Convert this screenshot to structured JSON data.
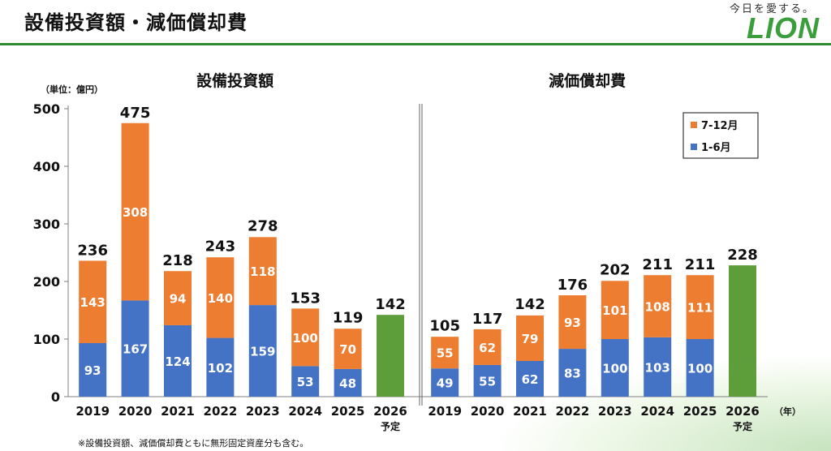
{
  "page": {
    "title": "設備投資額・減価償却費",
    "footnote": "※設備投資額、減価償却費ともに無形固定資産分も含む。"
  },
  "logo": {
    "tagline": "今日を愛する。",
    "name": "LION"
  },
  "colors": {
    "h1": "#4472c4",
    "h2": "#ed7d31",
    "planned": "#5e9e3a",
    "rule": "#2e8b34"
  },
  "chart_data": {
    "type": "bar",
    "unit_label": "（単位：億円）",
    "year_unit_label": "（年）",
    "ylim": [
      0,
      500
    ],
    "yticks": [
      0,
      100,
      200,
      300,
      400,
      500
    ],
    "legend": [
      {
        "key": "h2",
        "label": "7-12月"
      },
      {
        "key": "h1",
        "label": "1-6月"
      }
    ],
    "panels": [
      {
        "title": "設備投資額",
        "categories": [
          "2019",
          "2020",
          "2021",
          "2022",
          "2023",
          "2024",
          "2025",
          "2026"
        ],
        "category_notes": [
          "",
          "",
          "",
          "",
          "",
          "",
          "",
          "予定"
        ],
        "series": [
          {
            "name": "1-6月",
            "values": [
              93,
              167,
              124,
              102,
              159,
              53,
              48,
              null
            ]
          },
          {
            "name": "7-12月",
            "values": [
              143,
              308,
              94,
              140,
              118,
              100,
              70,
              null
            ]
          }
        ],
        "totals": [
          236,
          475,
          218,
          243,
          278,
          153,
          119,
          142
        ],
        "planned": [
          null,
          null,
          null,
          null,
          null,
          null,
          null,
          142
        ]
      },
      {
        "title": "減価償却費",
        "categories": [
          "2019",
          "2020",
          "2021",
          "2022",
          "2023",
          "2024",
          "2025",
          "2026"
        ],
        "category_notes": [
          "",
          "",
          "",
          "",
          "",
          "",
          "",
          "予定"
        ],
        "series": [
          {
            "name": "1-6月",
            "values": [
              49,
              55,
              62,
              83,
              100,
              103,
              100,
              null
            ]
          },
          {
            "name": "7-12月",
            "values": [
              55,
              62,
              79,
              93,
              101,
              108,
              111,
              null
            ]
          }
        ],
        "totals": [
          105,
          117,
          142,
          176,
          202,
          211,
          211,
          228
        ],
        "planned": [
          null,
          null,
          null,
          null,
          null,
          null,
          null,
          228
        ]
      }
    ]
  }
}
